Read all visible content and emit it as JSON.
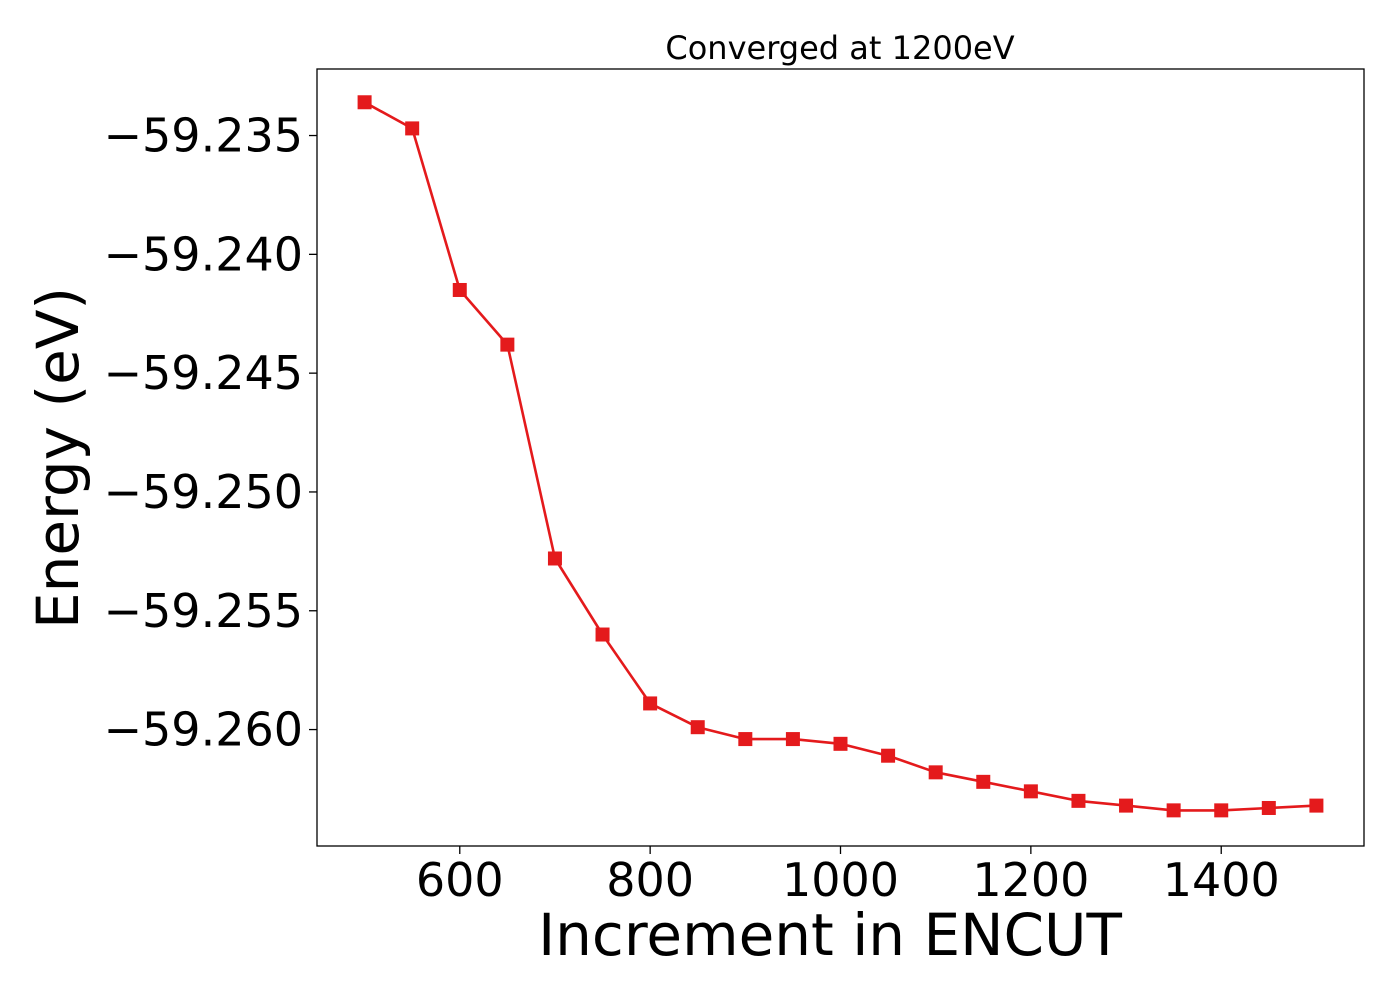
{
  "chart_data": {
    "type": "line",
    "title": "Converged at 1200eV",
    "xlabel": "Increment in ENCUT",
    "ylabel": "Energy (eV)",
    "xlim": [
      450,
      1550
    ],
    "ylim": [
      -59.2649,
      -59.2322
    ],
    "xticks": [
      600,
      800,
      1000,
      1200,
      1400
    ],
    "yticks": [
      -59.235,
      -59.24,
      -59.245,
      -59.25,
      -59.255,
      -59.26
    ],
    "ytick_labels": [
      "−59.235",
      "−59.240",
      "−59.245",
      "−59.250",
      "−59.255",
      "−59.260"
    ],
    "grid": false,
    "series": [
      {
        "color": "#e41a1c",
        "marker": "square",
        "x": [
          500,
          550,
          600,
          650,
          700,
          750,
          800,
          850,
          900,
          950,
          1000,
          1050,
          1100,
          1150,
          1200,
          1250,
          1300,
          1350,
          1400,
          1450,
          1500
        ],
        "y": [
          -59.2336,
          -59.2347,
          -59.2415,
          -59.2438,
          -59.2528,
          -59.256,
          -59.2589,
          -59.2599,
          -59.2604,
          -59.2604,
          -59.2606,
          -59.2611,
          -59.2618,
          -59.2622,
          -59.2626,
          -59.263,
          -59.2632,
          -59.2634,
          -59.2634,
          -59.2633,
          -59.2632
        ]
      }
    ]
  }
}
